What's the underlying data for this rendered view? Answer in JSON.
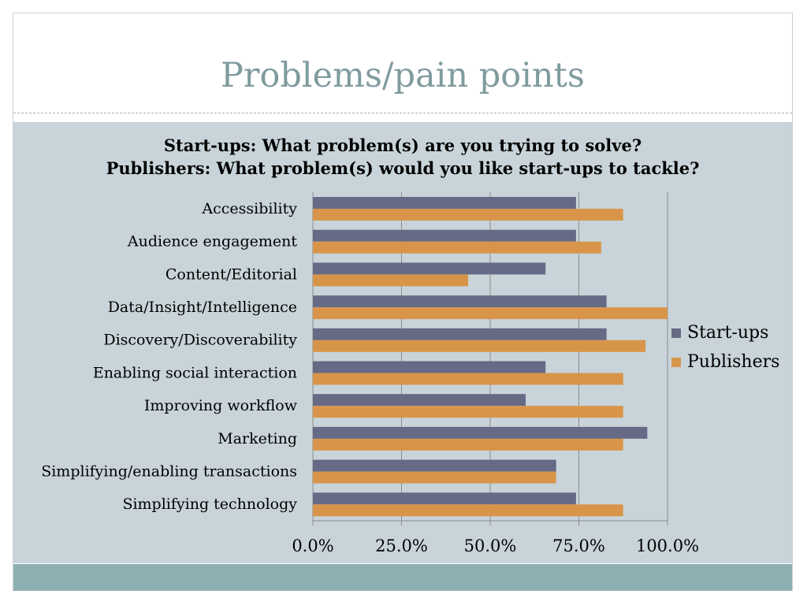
{
  "slide": {
    "title": "Problems/pain points"
  },
  "colors": {
    "startups": "#666a85",
    "publishers": "#d8954a",
    "content_bg": "#c8d4d9",
    "footer": "#8fb0b2",
    "title": "#7f9b9e"
  },
  "chart_data": {
    "type": "bar",
    "orientation": "horizontal",
    "title": "Start-ups: What problem(s) are you trying to solve?",
    "subtitle": "Publishers: What problem(s) would you like start-ups to tackle?",
    "categories": [
      "Accessibility",
      "Audience engagement",
      "Content/Editorial",
      "Data/Insight/Intelligence",
      "Discovery/Discoverability",
      "Enabling social interaction",
      "Improving workflow",
      "Marketing",
      "Simplifying/enabling transactions",
      "Simplifying technology"
    ],
    "series": [
      {
        "name": "Start-ups",
        "color": "#666a85",
        "values": [
          74.2,
          74.2,
          65.6,
          82.8,
          82.8,
          65.6,
          60.0,
          94.3,
          68.6,
          74.2
        ]
      },
      {
        "name": "Publishers",
        "color": "#d8954a",
        "values": [
          87.5,
          81.3,
          43.8,
          100.0,
          93.8,
          87.5,
          87.5,
          87.5,
          68.6,
          87.5
        ]
      }
    ],
    "xlim": [
      0,
      100
    ],
    "xticks": [
      "0.0%",
      "25.0%",
      "50.0%",
      "75.0%",
      "100.0%"
    ],
    "grid": true,
    "legend_position": "right"
  }
}
